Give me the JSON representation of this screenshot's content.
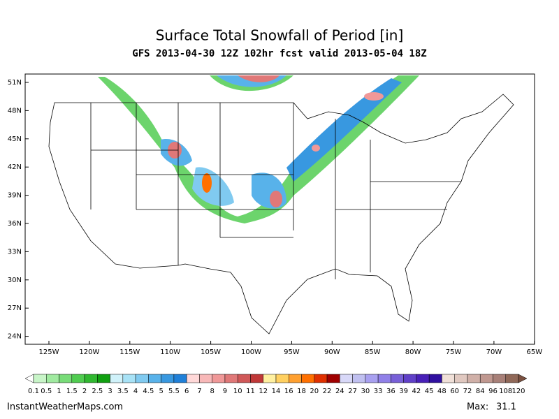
{
  "header": {
    "title": "Surface Total Snowfall of Period [in]",
    "subtitle": "GFS 2013-04-30 12Z 102hr fcst valid 2013-05-04 18Z"
  },
  "map": {
    "lat_labels": [
      "51N",
      "48N",
      "45N",
      "42N",
      "39N",
      "36N",
      "33N",
      "30N",
      "27N",
      "24N"
    ],
    "lon_labels": [
      "125W",
      "120W",
      "115W",
      "110W",
      "105W",
      "100W",
      "95W",
      "90W",
      "85W",
      "80W",
      "75W",
      "70W",
      "65W"
    ]
  },
  "colorbar": {
    "levels": [
      0.1,
      0.5,
      1,
      1.5,
      2,
      2.5,
      3,
      3.5,
      4,
      4.5,
      5,
      5.5,
      6,
      7,
      8,
      9,
      10,
      11,
      12,
      14,
      16,
      18,
      20,
      22,
      24,
      27,
      30,
      33,
      36,
      39,
      42,
      45,
      48,
      60,
      72,
      84,
      96,
      108,
      120
    ],
    "colors": [
      "#c8f5c8",
      "#a0eaa0",
      "#78dc78",
      "#50cc50",
      "#30b830",
      "#10a010",
      "#d0f2fa",
      "#a8e2f6",
      "#80caf0",
      "#58b2ea",
      "#3898e0",
      "#2080d8",
      "#ffd8d8",
      "#f8b8b8",
      "#f09898",
      "#e07878",
      "#d05858",
      "#c03838",
      "#fff0a0",
      "#ffd060",
      "#ffa030",
      "#ff7000",
      "#e03000",
      "#a00000",
      "#d8d8f8",
      "#c0c0f0",
      "#a8a0f0",
      "#9080e8",
      "#7860d8",
      "#6040c8",
      "#4820b8",
      "#3010a0",
      "#f0e0d8",
      "#e0c8c0",
      "#d0b0a8",
      "#c09890",
      "#a88078",
      "#906858"
    ],
    "under_color": "#ffffff",
    "over_color": "#7a5040"
  },
  "footer": {
    "site": "InstantWeatherMaps.com",
    "max_label": "Max:",
    "max_value": 31.1
  }
}
